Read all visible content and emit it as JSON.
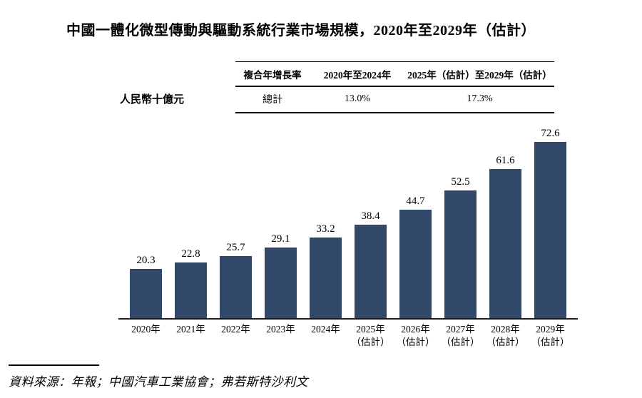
{
  "title": "中國一體化微型傳動與驅動系統行業市場規模，2020年至2029年（估計）",
  "unit_label": "人民幣十億元",
  "cagr_table": {
    "headers": [
      "複合年增長率",
      "2020年至2024年",
      "2025年（估計）至2029年（估計）"
    ],
    "rows": [
      [
        "總計",
        "13.0%",
        "17.3%"
      ]
    ]
  },
  "chart_data": {
    "type": "bar",
    "title": "中國一體化微型傳動與驅動系統行業市場規模，2020年至2029年（估計）",
    "xlabel": "",
    "ylabel": "人民幣十億元",
    "categories": [
      "2020年",
      "2021年",
      "2022年",
      "2023年",
      "2024年",
      "2025年（估計）",
      "2026年（估計）",
      "2027年（估計）",
      "2028年（估計）",
      "2029年（估計）"
    ],
    "values": [
      20.3,
      22.8,
      25.7,
      29.1,
      33.2,
      38.4,
      44.7,
      52.5,
      61.6,
      72.6
    ],
    "data_labels": [
      "20.3",
      "22.8",
      "25.7",
      "29.1",
      "33.2",
      "38.4",
      "44.7",
      "52.5",
      "61.6",
      "72.6"
    ],
    "ylim": [
      0,
      80
    ],
    "grid": false,
    "legend": false
  },
  "source": "資料來源：年報；中國汽車工業協會；弗若斯特沙利文",
  "colors": {
    "bar": "#31486B",
    "axis": "#1a1a1a",
    "text": "#000000"
  }
}
